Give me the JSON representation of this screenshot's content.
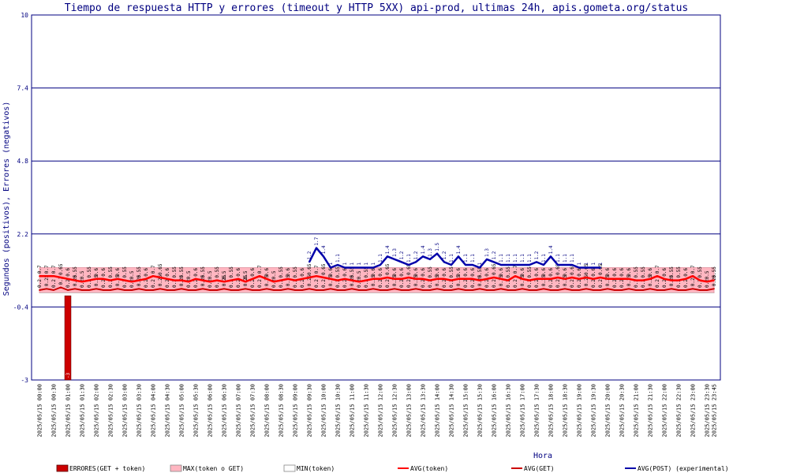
{
  "chart_data": {
    "type": "line",
    "title": "Tiempo de respuesta HTTP y errores (timeout y HTTP 5XX) api-prod, ultimas 24h, apis.gometa.org/status",
    "xlabel": "Hora",
    "ylabel": "Segundos (positivos), Errores (negativos)",
    "ylim": [
      -3,
      10
    ],
    "y_ticks": [
      "10",
      "7.4",
      "4.8",
      "2.2",
      "-0.4",
      "-3"
    ],
    "y_tick_values": [
      10,
      7.4,
      4.8,
      2.2,
      -0.4,
      -3
    ],
    "grid": true,
    "legend_position": "bottom",
    "x_tick_labels": [
      "2025/05/15 00:00",
      "2025/05/15 00:30",
      "2025/05/15 01:00",
      "2025/05/15 01:30",
      "2025/05/15 02:00",
      "2025/05/15 02:30",
      "2025/05/15 03:00",
      "2025/05/15 03:30",
      "2025/05/15 04:00",
      "2025/05/15 04:30",
      "2025/05/15 05:00",
      "2025/05/15 05:30",
      "2025/05/15 06:00",
      "2025/05/15 06:30",
      "2025/05/15 07:00",
      "2025/05/15 07:30",
      "2025/05/15 08:00",
      "2025/05/15 08:30",
      "2025/05/15 09:00",
      "2025/05/15 09:30",
      "2025/05/15 10:00",
      "2025/05/15 10:30",
      "2025/05/15 11:00",
      "2025/05/15 11:30",
      "2025/05/15 12:00",
      "2025/05/15 12:30",
      "2025/05/15 13:00",
      "2025/05/15 13:30",
      "2025/05/15 14:00",
      "2025/05/15 14:30",
      "2025/05/15 15:00",
      "2025/05/15 15:30",
      "2025/05/15 16:00",
      "2025/05/15 16:30",
      "2025/05/15 17:00",
      "2025/05/15 17:30",
      "2025/05/15 18:00",
      "2025/05/15 18:30",
      "2025/05/15 19:00",
      "2025/05/15 19:30",
      "2025/05/15 20:00",
      "2025/05/15 20:30",
      "2025/05/15 21:00",
      "2025/05/15 21:30",
      "2025/05/15 22:00",
      "2025/05/15 22:30",
      "2025/05/15 23:00",
      "2025/05/15 23:30",
      "2025/05/15 23:45"
    ],
    "x_tick_hours": [
      0,
      0.5,
      1,
      1.5,
      2,
      2.5,
      3,
      3.5,
      4,
      4.5,
      5,
      5.5,
      6,
      6.5,
      7,
      7.5,
      8,
      8.5,
      9,
      9.5,
      10,
      10.5,
      11,
      11.5,
      12,
      12.5,
      13,
      13.5,
      14,
      14.5,
      15,
      15.5,
      16,
      16.5,
      17,
      17.5,
      18,
      18.5,
      19,
      19.5,
      20,
      20.5,
      21,
      21.5,
      22,
      22.5,
      23,
      23.5,
      23.75
    ],
    "sample_hours_step": 0.25,
    "series": [
      {
        "name": "ERRORES(GET + token)",
        "type": "bar",
        "color": "#cc0000",
        "x": [
          1
        ],
        "values": [
          -3
        ],
        "labels": [
          "-3"
        ]
      },
      {
        "name": "MAX(token o GET)",
        "type": "area",
        "color": "#ffb6c1",
        "values": [
          1,
          1,
          1,
          1,
          1,
          1,
          1,
          1,
          1,
          1,
          1,
          1,
          1,
          1,
          1,
          1,
          1,
          1,
          1,
          1,
          1,
          1,
          1,
          1,
          1,
          1,
          1,
          1,
          1,
          1,
          1,
          1,
          1,
          1,
          1,
          1,
          1,
          1,
          1,
          1,
          1,
          1,
          1,
          1,
          1,
          1,
          1,
          1,
          1,
          1,
          1,
          1,
          1,
          1,
          1,
          1,
          1,
          1,
          1,
          1,
          1,
          1,
          1,
          1,
          1,
          1,
          1,
          1,
          1,
          1,
          1,
          1,
          1,
          1,
          1,
          1,
          1,
          1,
          1,
          1,
          1,
          1,
          1,
          1,
          1,
          1,
          1,
          1,
          1,
          1,
          1,
          1,
          1,
          1,
          1,
          1
        ]
      },
      {
        "name": "MIN(token)",
        "type": "area",
        "color": "#ffffff",
        "values": [
          0.1,
          0.1,
          0.1,
          0.1,
          0.1,
          0.1,
          0.1,
          0.1,
          0.1,
          0.1,
          0.1,
          0.1,
          0.1,
          0.1,
          0.1,
          0.1,
          0.1,
          0.1,
          0.1,
          0.1,
          0.1,
          0.1,
          0.1,
          0.1,
          0.1,
          0.1,
          0.1,
          0.1,
          0.1,
          0.1,
          0.1,
          0.1,
          0.1,
          0.1,
          0.1,
          0.1,
          0.1,
          0.1,
          0.1,
          0.1,
          0.1,
          0.1,
          0.1,
          0.1,
          0.1,
          0.1,
          0.1,
          0.1,
          0.1,
          0.1,
          0.1,
          0.1,
          0.1,
          0.1,
          0.1,
          0.1,
          0.1,
          0.1,
          0.1,
          0.1,
          0.1,
          0.1,
          0.1,
          0.1,
          0.1,
          0.1,
          0.1,
          0.1,
          0.1,
          0.1,
          0.1,
          0.1,
          0.1,
          0.1,
          0.1,
          0.1,
          0.1,
          0.1,
          0.1,
          0.1,
          0.1,
          0.1,
          0.1,
          0.1,
          0.1,
          0.1,
          0.1,
          0.1,
          0.1,
          0.1,
          0.1,
          0.1,
          0.1,
          0.1,
          0.1,
          0.1
        ]
      },
      {
        "name": "AVG(token)",
        "type": "line",
        "color": "#ff0000",
        "values": [
          0.7,
          0.7,
          0.7,
          0.65,
          0.6,
          0.55,
          0.5,
          0.55,
          0.6,
          0.6,
          0.55,
          0.6,
          0.55,
          0.5,
          0.55,
          0.6,
          0.7,
          0.65,
          0.6,
          0.55,
          0.55,
          0.5,
          0.6,
          0.55,
          0.5,
          0.55,
          0.5,
          0.55,
          0.6,
          0.5,
          0.6,
          0.7,
          0.6,
          0.5,
          0.55,
          0.6,
          0.55,
          0.6,
          0.65,
          0.7,
          0.65,
          0.6,
          0.55,
          0.6,
          0.55,
          0.5,
          0.55,
          0.6,
          0.6,
          0.65,
          0.6,
          0.6,
          0.65,
          0.6,
          0.6,
          0.55,
          0.6,
          0.6,
          0.55,
          0.6,
          0.6,
          0.6,
          0.55,
          0.6,
          0.65,
          0.6,
          0.55,
          0.7,
          0.6,
          0.55,
          0.6,
          0.6,
          0.6,
          0.65,
          0.6,
          0.65,
          0.6,
          0.65,
          0.6,
          0.65,
          0.6,
          0.6,
          0.6,
          0.6,
          0.55,
          0.55,
          0.6,
          0.7,
          0.6,
          0.55,
          0.55,
          0.6,
          0.7,
          0.55,
          0.5,
          0.55
        ]
      },
      {
        "name": "AVG(GET)",
        "type": "line",
        "color": "#cc0000",
        "values": [
          0.2,
          0.25,
          0.2,
          0.3,
          0.2,
          0.25,
          0.2,
          0.2,
          0.25,
          0.2,
          0.2,
          0.25,
          0.2,
          0.2,
          0.25,
          0.2,
          0.2,
          0.25,
          0.2,
          0.2,
          0.25,
          0.2,
          0.2,
          0.25,
          0.2,
          0.2,
          0.25,
          0.2,
          0.2,
          0.25,
          0.2,
          0.2,
          0.25,
          0.2,
          0.2,
          0.25,
          0.2,
          0.2,
          0.25,
          0.2,
          0.2,
          0.25,
          0.2,
          0.2,
          0.25,
          0.2,
          0.2,
          0.25,
          0.2,
          0.2,
          0.25,
          0.2,
          0.2,
          0.25,
          0.2,
          0.2,
          0.25,
          0.2,
          0.2,
          0.25,
          0.2,
          0.2,
          0.25,
          0.2,
          0.2,
          0.25,
          0.2,
          0.2,
          0.25,
          0.2,
          0.2,
          0.25,
          0.2,
          0.2,
          0.25,
          0.2,
          0.2,
          0.25,
          0.2,
          0.2,
          0.25,
          0.2,
          0.2,
          0.25,
          0.2,
          0.2,
          0.25,
          0.2,
          0.2,
          0.25,
          0.2,
          0.2,
          0.25,
          0.2,
          0.2,
          0.25
        ]
      },
      {
        "name": "AVG(POST) (experimental)",
        "type": "line",
        "color": "#0000aa",
        "x_start": 9.5,
        "values": [
          1.2,
          1.7,
          1.4,
          1.0,
          1.1,
          1.0,
          1.0,
          1.0,
          1.0,
          1.0,
          1.1,
          1.4,
          1.3,
          1.2,
          1.1,
          1.2,
          1.4,
          1.3,
          1.5,
          1.2,
          1.1,
          1.4,
          1.1,
          1.1,
          1.0,
          1.3,
          1.2,
          1.1,
          1.1,
          1.1,
          1.1,
          1.1,
          1.2,
          1.1,
          1.4,
          1.1,
          1.1,
          1.1,
          1.0,
          1.0,
          1.0,
          1.0
        ]
      }
    ]
  }
}
